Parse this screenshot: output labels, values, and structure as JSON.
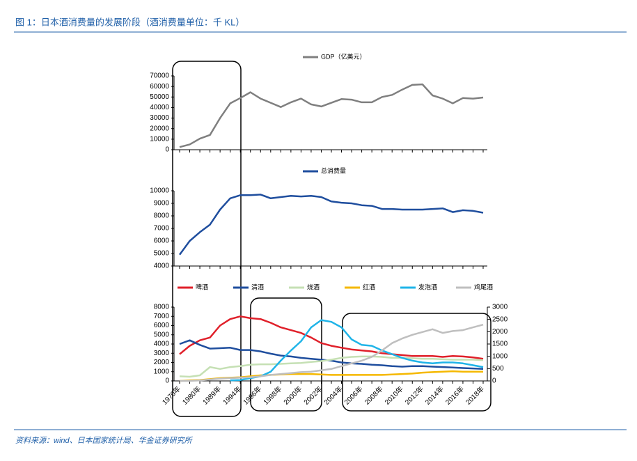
{
  "title": "图 1：日本酒消费量的发展阶段（酒消费量单位：千 KL）",
  "source": "资料来源：wind、日本国家统计局、华金证券研究所",
  "chart_data": [
    {
      "type": "line",
      "legend": "top",
      "series": [
        {
          "name": "GDP（亿美元）",
          "color": "#7f7f7f",
          "values": [
            2500,
            5000,
            10500,
            14000,
            30000,
            44000,
            49000,
            54500,
            48500,
            44500,
            40500,
            45000,
            48500,
            43000,
            41000,
            44500,
            48000,
            47500,
            45000,
            45000,
            50000,
            52000,
            57000,
            61500,
            62000,
            51500,
            48500,
            44000,
            49000,
            48500,
            49500
          ]
        }
      ],
      "ylim": [
        0,
        70000
      ],
      "yticks": [
        0,
        10000,
        20000,
        30000,
        40000,
        50000,
        60000,
        70000
      ]
    },
    {
      "type": "line",
      "legend": "top",
      "series": [
        {
          "name": "总消费量",
          "color": "#1f4e9e",
          "values": [
            4900,
            6000,
            6700,
            7300,
            8500,
            9400,
            9650,
            9650,
            9700,
            9400,
            9500,
            9600,
            9550,
            9600,
            9500,
            9150,
            9050,
            9000,
            8850,
            8800,
            8550,
            8550,
            8500,
            8500,
            8500,
            8550,
            8600,
            8300,
            8450,
            8400,
            8250
          ]
        }
      ],
      "ylim": [
        4000,
        10000
      ],
      "yticks": [
        4000,
        5000,
        6000,
        7000,
        8000,
        9000,
        10000
      ]
    },
    {
      "type": "line",
      "legend": "top",
      "categories": [
        "1970年",
        null,
        "1980年",
        null,
        "1989年",
        null,
        "1994年",
        null,
        "1996年",
        null,
        "1998年",
        null,
        "2000年",
        null,
        "2002年",
        null,
        "2004年",
        null,
        "2006年",
        null,
        "2008年",
        null,
        "2010年",
        null,
        "2012年",
        null,
        "2014年",
        null,
        "2016年",
        null,
        "2018年"
      ],
      "series": [
        {
          "name": "啤酒",
          "color": "#e0202a",
          "values": [
            2900,
            3800,
            4400,
            4700,
            6000,
            6700,
            7000,
            6800,
            6700,
            6300,
            5800,
            5500,
            5200,
            4700,
            4100,
            3800,
            3600,
            3400,
            3300,
            3200,
            3000,
            2900,
            2800,
            2700,
            2700,
            2700,
            2600,
            2700,
            2650,
            2550,
            2400
          ]
        },
        {
          "name": "清酒",
          "color": "#1f4e9e",
          "values": [
            4000,
            4400,
            3900,
            3500,
            3550,
            3600,
            3350,
            3350,
            3200,
            2950,
            2750,
            2650,
            2500,
            2400,
            2300,
            2200,
            2000,
            1900,
            1850,
            1750,
            1700,
            1600,
            1550,
            1600,
            1600,
            1550,
            1500,
            1450,
            1400,
            1350,
            1300
          ]
        },
        {
          "name": "烧酒",
          "color": "#c5e0b4",
          "values": [
            500,
            450,
            600,
            1500,
            1300,
            1500,
            1600,
            1750,
            1800,
            1800,
            1850,
            1900,
            1950,
            2050,
            2150,
            2300,
            2500,
            2600,
            2650,
            2650,
            2600,
            2500,
            2500,
            2450,
            2400,
            2400,
            2350,
            2300,
            2300,
            2300,
            2250
          ]
        },
        {
          "name": "红酒",
          "color": "#f5b800",
          "values": [
            0,
            50,
            100,
            200,
            300,
            350,
            400,
            500,
            600,
            650,
            700,
            750,
            750,
            750,
            700,
            650,
            650,
            650,
            650,
            650,
            650,
            700,
            750,
            800,
            900,
            950,
            1000,
            1050,
            1000,
            1000,
            1000
          ]
        },
        {
          "name": "发泡酒",
          "color": "#1fb4e8",
          "values": [
            null,
            null,
            null,
            null,
            null,
            50,
            100,
            300,
            500,
            1000,
            2200,
            3300,
            4300,
            5800,
            6600,
            6400,
            5800,
            4500,
            3900,
            3800,
            3300,
            2900,
            2500,
            2200,
            2000,
            1900,
            2000,
            2000,
            1900,
            1700,
            1500
          ]
        },
        {
          "name": "鸡尾酒",
          "color": "#bfbfbf",
          "values": [
            0,
            0,
            50,
            150,
            250,
            300,
            350,
            400,
            500,
            650,
            750,
            850,
            950,
            1000,
            1150,
            1300,
            1600,
            1900,
            2200,
            2600,
            3300,
            4100,
            4600,
            5000,
            5300,
            5600,
            5200,
            5400,
            5500,
            5800,
            6100
          ]
        }
      ],
      "ylim": [
        0,
        8000
      ],
      "yticks": [
        0,
        1000,
        2000,
        3000,
        4000,
        5000,
        6000,
        7000,
        8000
      ],
      "y2lim": [
        0,
        3000
      ],
      "y2ticks": [
        0,
        500,
        1000,
        1500,
        2000,
        2500,
        3000
      ]
    }
  ]
}
